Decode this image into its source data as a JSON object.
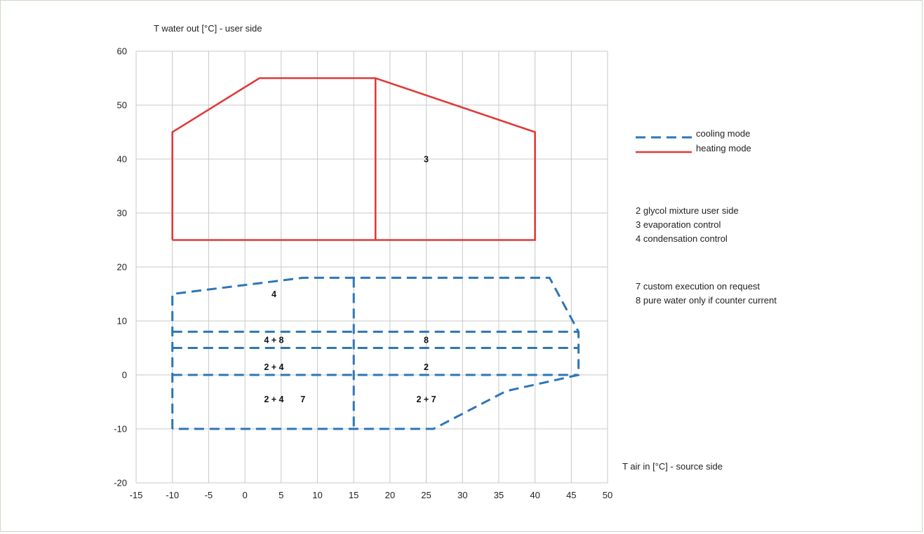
{
  "chart_data": {
    "type": "line",
    "title": "",
    "ylabel": "T water out [°C] - user side",
    "xlabel": "T air in [°C] - source side",
    "xlim": [
      -15,
      50
    ],
    "ylim": [
      -20,
      60
    ],
    "xticks": [
      -15,
      -10,
      -5,
      0,
      5,
      10,
      15,
      20,
      25,
      30,
      35,
      40,
      45,
      50
    ],
    "yticks": [
      -20,
      -10,
      0,
      10,
      20,
      30,
      40,
      50,
      60
    ],
    "grid": true,
    "legend_position": "right",
    "series": [
      {
        "name": "cooling mode",
        "style": "dashed",
        "color": "#2e75b6",
        "segments": [
          [
            [
              -10,
              -10
            ],
            [
              -10,
              15
            ],
            [
              2,
              17
            ],
            [
              8,
              18
            ],
            [
              42,
              18
            ],
            [
              46,
              8
            ],
            [
              46,
              0
            ],
            [
              36,
              -3
            ],
            [
              26,
              -10
            ],
            [
              -10,
              -10
            ]
          ],
          [
            [
              -10,
              8
            ],
            [
              46,
              8
            ]
          ],
          [
            [
              -10,
              5
            ],
            [
              46,
              5
            ]
          ],
          [
            [
              -10,
              0
            ],
            [
              46,
              0
            ]
          ],
          [
            [
              15,
              18
            ],
            [
              15,
              -10
            ]
          ]
        ]
      },
      {
        "name": "heating mode",
        "style": "solid",
        "color": "#e03a3a",
        "segments": [
          [
            [
              -10,
              25
            ],
            [
              -10,
              45
            ],
            [
              2,
              55
            ],
            [
              18,
              55
            ],
            [
              40,
              45
            ],
            [
              40,
              25
            ],
            [
              -10,
              25
            ]
          ],
          [
            [
              18,
              55
            ],
            [
              18,
              25
            ]
          ]
        ]
      }
    ],
    "annotations": [
      {
        "text": "3",
        "x": 25,
        "y": 40
      },
      {
        "text": "4",
        "x": 4,
        "y": 15
      },
      {
        "text": "4 + 8",
        "x": 4,
        "y": 6.5
      },
      {
        "text": "8",
        "x": 25,
        "y": 6.5
      },
      {
        "text": "2 + 4",
        "x": 4,
        "y": 1.5
      },
      {
        "text": "2",
        "x": 25,
        "y": 1.5
      },
      {
        "text": "2 + 4",
        "x": 4,
        "y": -4.5
      },
      {
        "text": "7",
        "x": 8,
        "y": -4.5
      },
      {
        "text": "2 + 7",
        "x": 25,
        "y": -4.5
      }
    ],
    "notes": [
      "2  glycol mixture user side",
      "3  evaporation control",
      "4  condensation control",
      "7  custom execution on request",
      "8  pure water only if counter current"
    ]
  }
}
